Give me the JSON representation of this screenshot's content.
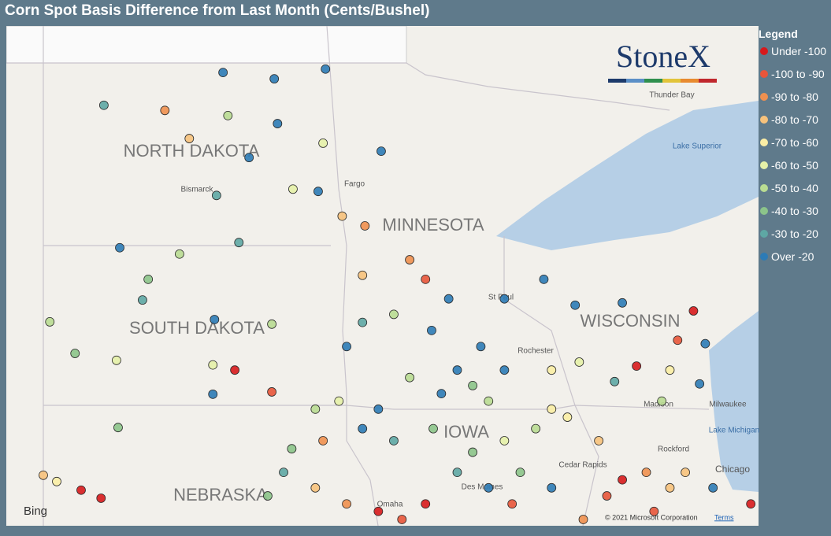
{
  "title": "Corn Spot Basis Difference from Last Month (Cents/Bushel)",
  "legend": {
    "title": "Legend",
    "items": [
      {
        "label": "Under -100",
        "color": "#d7191c"
      },
      {
        "label": "-100 to -90",
        "color": "#e8553a"
      },
      {
        "label": "-90 to -80",
        "color": "#f0904f"
      },
      {
        "label": "-80 to -70",
        "color": "#f7c27c"
      },
      {
        "label": "-70 to -60",
        "color": "#fbeea5"
      },
      {
        "label": "-60 to -50",
        "color": "#e6f1a8"
      },
      {
        "label": "-50 to -40",
        "color": "#b9dc92"
      },
      {
        "label": "-40 to -30",
        "color": "#8cc48a"
      },
      {
        "label": "-30 to -20",
        "color": "#5ea7a4"
      },
      {
        "label": "Over -20",
        "color": "#2c7bb6"
      }
    ]
  },
  "logo": "StoneX",
  "attribution": {
    "bing": "Bing",
    "copyright": "© 2021 Microsoft Corporation",
    "terms": "Terms"
  },
  "map": {
    "extent": {
      "lon": [
        -105,
        -86.5
      ],
      "lat": [
        49.75,
        41.05
      ]
    },
    "labels": [
      "NORTH DAKOTA",
      "SOUTH DAKOTA",
      "MINNESOTA",
      "WISCONSIN",
      "IOWA",
      "NEBRASKA",
      "Bismarck",
      "Fargo",
      "Thunder Bay",
      "Lake Superior",
      "Rochester",
      "St Paul",
      "Madison",
      "Milwaukee",
      "Lake Michigan",
      "Rockford",
      "Chicago",
      "Cedar Rapids",
      "Omaha",
      "Des Moines"
    ],
    "points": [
      [
        -99.67,
        48.94,
        9
      ],
      [
        -98.41,
        48.83,
        9
      ],
      [
        -97.15,
        49.0,
        9
      ],
      [
        -102.6,
        48.37,
        8
      ],
      [
        -101.1,
        48.28,
        2
      ],
      [
        -100.5,
        47.79,
        3
      ],
      [
        -99.55,
        48.19,
        6
      ],
      [
        -98.33,
        48.05,
        9
      ],
      [
        -97.21,
        47.71,
        5
      ],
      [
        -95.78,
        47.57,
        9
      ],
      [
        -99.03,
        47.46,
        9
      ],
      [
        -97.33,
        46.87,
        9
      ],
      [
        -99.83,
        46.8,
        8
      ],
      [
        -97.95,
        46.91,
        5
      ],
      [
        -96.74,
        46.44,
        3
      ],
      [
        -96.18,
        46.27,
        2
      ],
      [
        -102.21,
        45.89,
        9
      ],
      [
        -100.74,
        45.78,
        6
      ],
      [
        -99.28,
        45.98,
        8
      ],
      [
        -101.51,
        45.34,
        7
      ],
      [
        -101.65,
        44.98,
        8
      ],
      [
        -99.88,
        44.64,
        9
      ],
      [
        -98.47,
        44.56,
        6
      ],
      [
        -103.93,
        44.6,
        6
      ],
      [
        -103.31,
        44.05,
        7
      ],
      [
        -102.29,
        43.93,
        5
      ],
      [
        -99.92,
        43.85,
        5
      ],
      [
        -99.38,
        43.76,
        0
      ],
      [
        -98.47,
        43.38,
        1
      ],
      [
        -99.92,
        43.34,
        9
      ],
      [
        -102.25,
        42.76,
        7
      ],
      [
        -104.09,
        41.93,
        3
      ],
      [
        -103.76,
        41.82,
        4
      ],
      [
        -103.16,
        41.67,
        0
      ],
      [
        -102.67,
        41.53,
        0
      ],
      [
        -96.63,
        44.17,
        9
      ],
      [
        -96.24,
        44.59,
        8
      ],
      [
        -95.47,
        44.73,
        6
      ],
      [
        -94.54,
        44.45,
        9
      ],
      [
        -94.12,
        45.0,
        9
      ],
      [
        -95.08,
        45.68,
        2
      ],
      [
        -94.69,
        45.34,
        1
      ],
      [
        -96.24,
        45.41,
        3
      ],
      [
        -92.75,
        45.0,
        9
      ],
      [
        -91.78,
        45.34,
        9
      ],
      [
        -91.01,
        44.89,
        9
      ],
      [
        -89.85,
        44.93,
        9
      ],
      [
        -88.1,
        44.79,
        0
      ],
      [
        -87.81,
        44.22,
        9
      ],
      [
        -88.49,
        44.28,
        1
      ],
      [
        -89.5,
        43.83,
        0
      ],
      [
        -88.68,
        43.76,
        4
      ],
      [
        -87.95,
        43.52,
        9
      ],
      [
        -88.88,
        43.22,
        6
      ],
      [
        -90.04,
        43.56,
        8
      ],
      [
        -90.91,
        43.9,
        5
      ],
      [
        -91.59,
        43.76,
        4
      ],
      [
        -92.75,
        43.76,
        9
      ],
      [
        -93.33,
        44.17,
        9
      ],
      [
        -93.53,
        43.49,
        7
      ],
      [
        -94.3,
        43.35,
        9
      ],
      [
        -95.08,
        43.63,
        6
      ],
      [
        -95.85,
        43.08,
        9
      ],
      [
        -96.24,
        42.74,
        9
      ],
      [
        -95.47,
        42.53,
        8
      ],
      [
        -94.5,
        42.74,
        7
      ],
      [
        -93.53,
        42.33,
        7
      ],
      [
        -92.75,
        42.53,
        5
      ],
      [
        -91.98,
        42.74,
        6
      ],
      [
        -91.2,
        42.94,
        4
      ],
      [
        -90.43,
        42.53,
        3
      ],
      [
        -89.85,
        41.85,
        0
      ],
      [
        -89.26,
        41.98,
        2
      ],
      [
        -88.68,
        41.71,
        3
      ],
      [
        -90.23,
        41.57,
        1
      ],
      [
        -90.81,
        41.16,
        2
      ],
      [
        -91.59,
        41.71,
        9
      ],
      [
        -92.36,
        41.98,
        7
      ],
      [
        -93.14,
        41.71,
        9
      ],
      [
        -93.91,
        41.98,
        8
      ],
      [
        -94.69,
        41.43,
        0
      ],
      [
        -95.27,
        41.16,
        1
      ],
      [
        -95.85,
        41.3,
        0
      ],
      [
        -96.63,
        41.43,
        2
      ],
      [
        -97.4,
        41.71,
        3
      ],
      [
        -98.18,
        41.98,
        8
      ],
      [
        -98.57,
        41.57,
        7
      ],
      [
        -97.98,
        42.39,
        7
      ],
      [
        -97.21,
        42.53,
        2
      ],
      [
        -97.4,
        43.08,
        6
      ],
      [
        -96.82,
        43.22,
        5
      ],
      [
        -87.62,
        41.71,
        9
      ],
      [
        -86.69,
        41.43,
        0
      ],
      [
        -88.3,
        41.98,
        3
      ],
      [
        -89.07,
        41.3,
        1
      ],
      [
        -92.56,
        41.43,
        1
      ],
      [
        -91.59,
        43.08,
        4
      ],
      [
        -93.14,
        43.22,
        6
      ],
      [
        -93.91,
        43.76,
        9
      ]
    ]
  }
}
